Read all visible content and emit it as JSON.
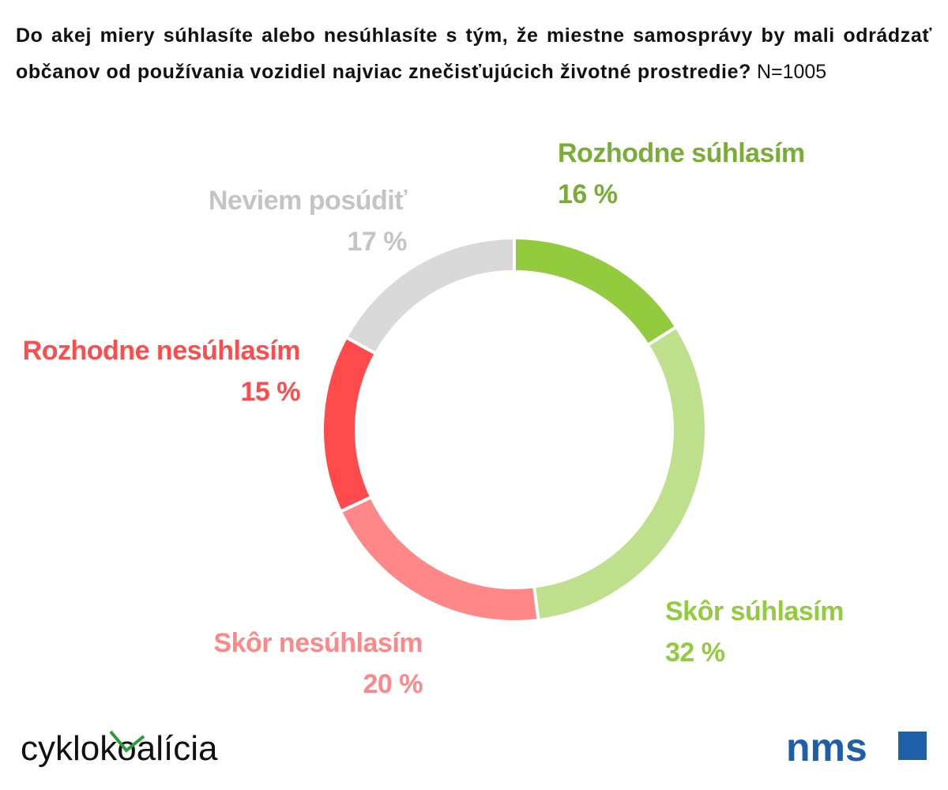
{
  "chart_data": {
    "type": "donut",
    "title": "Do akej miery súhlasíte alebo nesúhlasíte s tým, že miestne samosprávy by mali odrádzať občanov od používania vozidiel najviac znečisťujúcich životné prostredie?",
    "subtitle": "N=1005",
    "categories": [
      "Rozhodne súhlasím",
      "Skôr súhlasím",
      "Skôr nesúhlasím",
      "Rozhodne nesúhlasím",
      "Neviem posúdiť"
    ],
    "values": [
      16,
      32,
      20,
      15,
      17
    ],
    "value_labels": [
      "16 %",
      "32 %",
      "20 %",
      "15 %",
      "17 %"
    ],
    "colors": [
      "#93cb3e",
      "#bee08c",
      "#ff8787",
      "#ff4b4b",
      "#d9d9d9"
    ],
    "label_colors": [
      "#78ad36",
      "#93cb3e",
      "#ff8787",
      "#ff4b4b",
      "#c4c4c4"
    ]
  },
  "logos": {
    "left": "cyklokoalícia",
    "right": "nms"
  }
}
